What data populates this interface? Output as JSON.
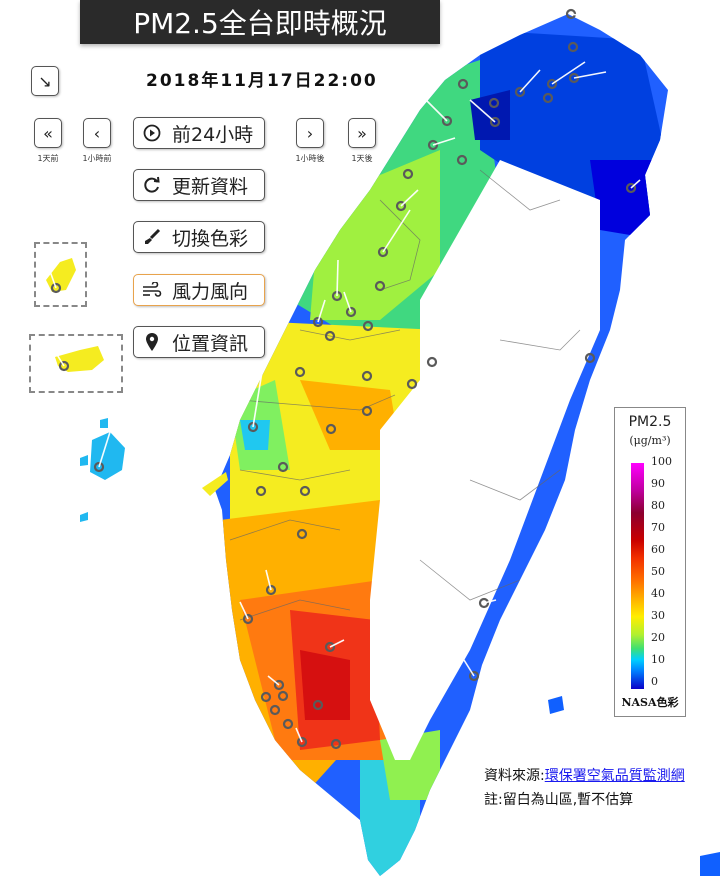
{
  "header": {
    "title": "PM2.5全台即時概況",
    "datetime": "2018年11月17日22:00"
  },
  "nav": {
    "expand_icon": "↘",
    "day_back": {
      "icon": "«",
      "label": "1天前"
    },
    "hour_back": {
      "icon": "‹",
      "label": "1小時前"
    },
    "hour_fwd": {
      "icon": "›",
      "label": "1小時後"
    },
    "day_fwd": {
      "icon": "»",
      "label": "1天後"
    }
  },
  "menu": {
    "prev24": "前24小時",
    "refresh": "更新資料",
    "color": "切換色彩",
    "wind": "風力風向",
    "location": "位置資訊"
  },
  "legend": {
    "title": "PM2.5",
    "unit": "(μg/m³)",
    "ticks": [
      "100",
      "90",
      "80",
      "70",
      "60",
      "50",
      "40",
      "30",
      "20",
      "10",
      "0"
    ],
    "footer": "NASA色彩"
  },
  "footer": {
    "source_prefix": "資料來源:",
    "source_link": "環保署空氣品質監測網",
    "note": "註:留白為山區,暫不估算"
  },
  "colors": {
    "high": "#e8201a",
    "mid": "#ffb000",
    "low": "#ffee00",
    "clean": "#0066ff",
    "very_clean": "#0000dd",
    "frame_active": "#e8a34c"
  }
}
